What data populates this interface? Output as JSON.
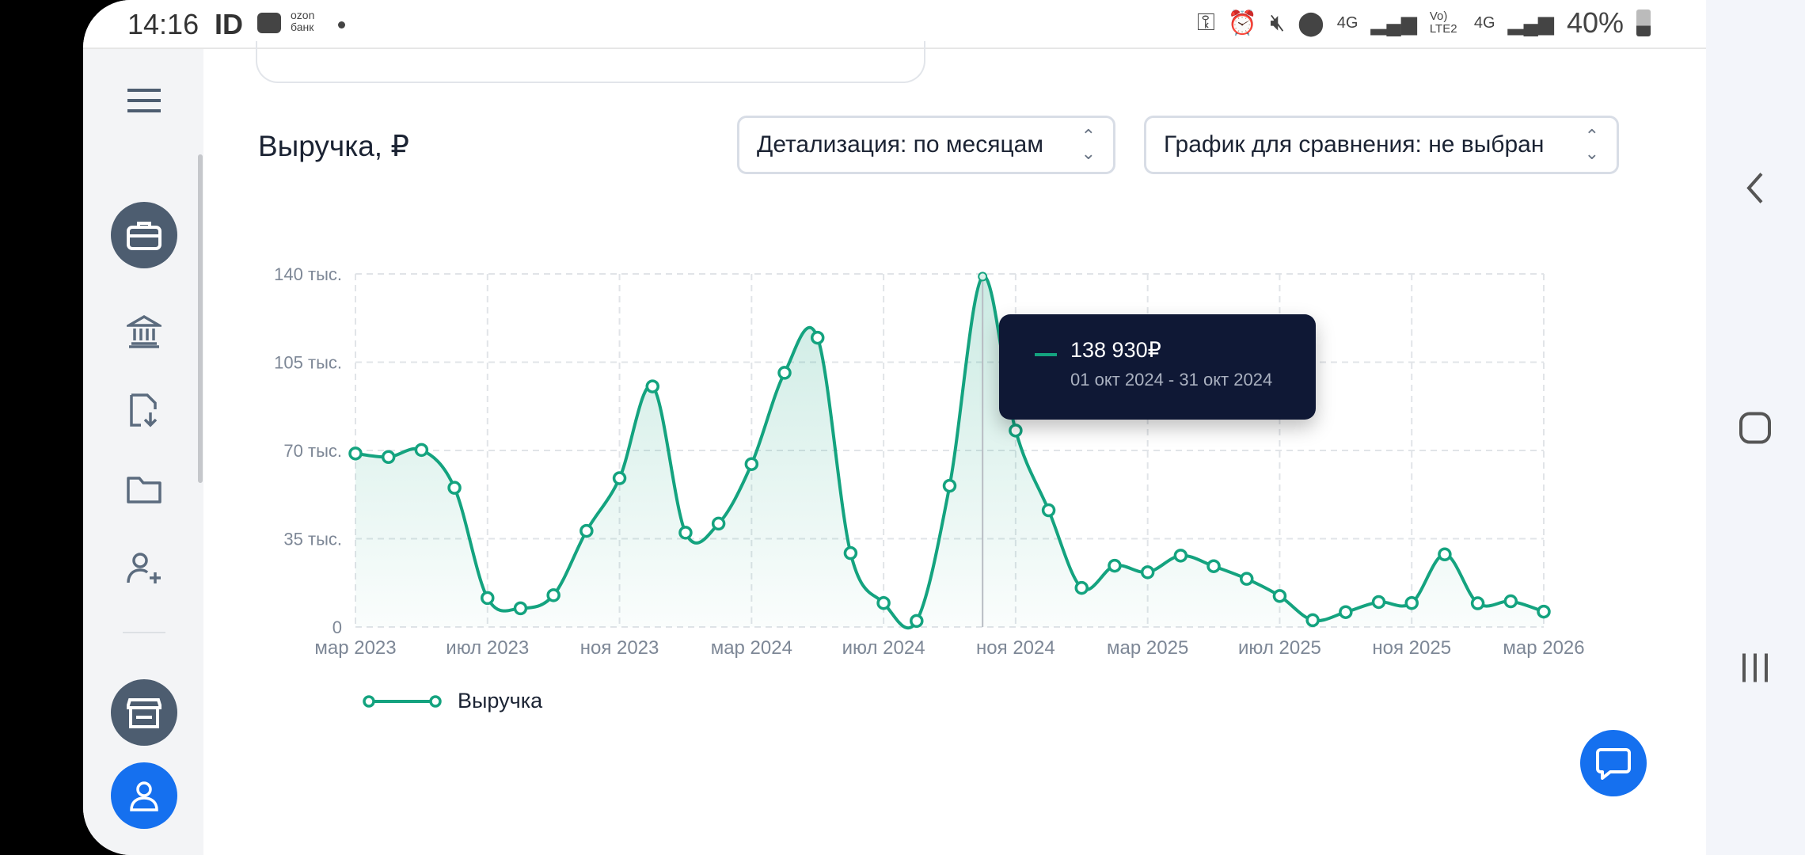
{
  "status_bar": {
    "time": "14:16",
    "carrier_icon_text": "ID",
    "ozon_label": "ozon банк",
    "network_1": "4G",
    "volte": "Vo) LTE2",
    "network_2": "4G",
    "battery": "40%"
  },
  "sidebar": {
    "items": [
      "menu-icon",
      "briefcase-icon",
      "bank-icon",
      "document-download-icon",
      "folder-icon",
      "user-plus-icon",
      "store-icon",
      "user-icon"
    ]
  },
  "header": {
    "title": "Выручка, ₽"
  },
  "selects": {
    "detail": "Детализация: по месяцам",
    "compare": "График для сравнения: не выбран"
  },
  "tooltip": {
    "value": "138 930₽",
    "period": "01 окт 2024 - 31 окт 2024"
  },
  "legend": {
    "label": "Выручка"
  },
  "colors": {
    "series": "#14a37f",
    "tooltip_bg": "#0f1835",
    "chat_button": "#1570ef"
  },
  "chart_data": {
    "type": "line",
    "title": "Выручка, ₽",
    "xlabel": "",
    "ylabel": "",
    "ylim": [
      0,
      140000
    ],
    "yticks": [
      0,
      35000,
      70000,
      105000,
      140000
    ],
    "ytick_labels": [
      "0",
      "35 тыс.",
      "70 тыс.",
      "105 тыс.",
      "140 тыс."
    ],
    "xtick_labels": [
      "мар 2023",
      "июл 2023",
      "ноя 2023",
      "мар 2024",
      "июл 2024",
      "ноя 2024",
      "мар 2025",
      "июл 2025",
      "ноя 2025",
      "мар 2026"
    ],
    "x": [
      "2023-03",
      "2023-04",
      "2023-05",
      "2023-06",
      "2023-07",
      "2023-08",
      "2023-09",
      "2023-10",
      "2023-11",
      "2023-12",
      "2024-01",
      "2024-02",
      "2024-03",
      "2024-04",
      "2024-05",
      "2024-06",
      "2024-07",
      "2024-08",
      "2024-09",
      "2024-10",
      "2024-11",
      "2024-12",
      "2025-01",
      "2025-02",
      "2025-03",
      "2025-04",
      "2025-05",
      "2025-06",
      "2025-07",
      "2025-08",
      "2025-09",
      "2025-10",
      "2025-11",
      "2025-12",
      "2026-01",
      "2026-02",
      "2026-03"
    ],
    "series": [
      {
        "name": "Выручка",
        "values": [
          68800,
          67400,
          70200,
          55200,
          11500,
          7400,
          12600,
          38100,
          59000,
          95400,
          37400,
          41000,
          64600,
          100800,
          114700,
          29300,
          9500,
          2400,
          56000,
          138930,
          77900,
          46300,
          15500,
          24300,
          21700,
          28300,
          24100,
          19100,
          12300,
          2700,
          5900,
          9900,
          9500,
          28800,
          9400,
          10200,
          6100
        ]
      }
    ],
    "highlighted_index": 19,
    "grid": true,
    "legend": "bottom-left"
  }
}
